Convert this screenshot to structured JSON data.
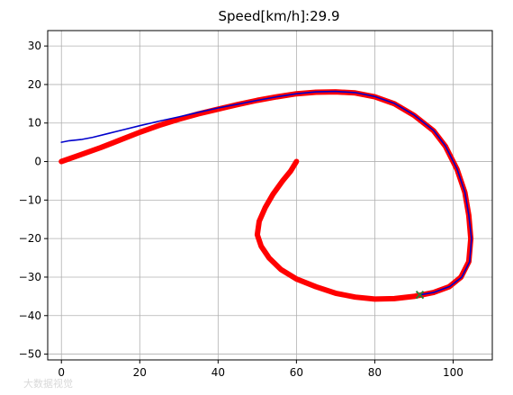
{
  "chart_data": {
    "type": "line",
    "title": "Speed[km/h]:29.9",
    "xlabel": "",
    "ylabel": "",
    "xlim": [
      -3.5,
      110
    ],
    "ylim": [
      -51.5,
      34
    ],
    "grid": true,
    "x_ticks": [
      0,
      20,
      40,
      60,
      80,
      100
    ],
    "y_ticks": [
      -50,
      -40,
      -30,
      -20,
      -10,
      0,
      10,
      20,
      30
    ],
    "series": [
      {
        "name": "",
        "color": "#ff0000",
        "style": "thick-markers",
        "points": [
          [
            0,
            0
          ],
          [
            5,
            1.8
          ],
          [
            10,
            3.6
          ],
          [
            15,
            5.6
          ],
          [
            20,
            7.6
          ],
          [
            25,
            9.4
          ],
          [
            30,
            11
          ],
          [
            35,
            12.4
          ],
          [
            40,
            13.6
          ],
          [
            45,
            14.8
          ],
          [
            50,
            15.9
          ],
          [
            55,
            16.8
          ],
          [
            60,
            17.6
          ],
          [
            65,
            18
          ],
          [
            70,
            18.1
          ],
          [
            75,
            17.8
          ],
          [
            80,
            16.8
          ],
          [
            85,
            15
          ],
          [
            90,
            12
          ],
          [
            95,
            8
          ],
          [
            98,
            4
          ],
          [
            101,
            -2
          ],
          [
            103,
            -8
          ],
          [
            104,
            -14
          ],
          [
            104.5,
            -20
          ],
          [
            104,
            -26
          ],
          [
            102,
            -30
          ],
          [
            99,
            -32.5
          ],
          [
            95,
            -34
          ],
          [
            90,
            -35
          ],
          [
            85,
            -35.6
          ],
          [
            80,
            -35.7
          ],
          [
            75,
            -35.2
          ],
          [
            70,
            -34.2
          ],
          [
            65,
            -32.5
          ],
          [
            60,
            -30.5
          ],
          [
            56,
            -28
          ],
          [
            53,
            -25
          ],
          [
            51,
            -22
          ],
          [
            50,
            -19
          ],
          [
            50.5,
            -15.5
          ],
          [
            52,
            -12
          ],
          [
            54,
            -8.5
          ],
          [
            56.5,
            -5
          ],
          [
            58.5,
            -2.5
          ],
          [
            60,
            0
          ]
        ]
      },
      {
        "name": "",
        "color": "#0000cc",
        "style": "thin-line",
        "points": [
          [
            0,
            5
          ],
          [
            2,
            5.4
          ],
          [
            5,
            5.7
          ],
          [
            8,
            6.3
          ],
          [
            12,
            7.3
          ],
          [
            16,
            8.3
          ],
          [
            20,
            9.3
          ],
          [
            25,
            10.5
          ],
          [
            30,
            11.6
          ],
          [
            35,
            12.8
          ],
          [
            40,
            13.9
          ],
          [
            45,
            14.9
          ],
          [
            50,
            15.9
          ],
          [
            55,
            16.8
          ],
          [
            60,
            17.6
          ],
          [
            65,
            18.1
          ],
          [
            70,
            18.2
          ],
          [
            75,
            17.9
          ],
          [
            80,
            16.9
          ],
          [
            85,
            15.1
          ],
          [
            90,
            12.1
          ],
          [
            95,
            8.1
          ],
          [
            98,
            4.1
          ],
          [
            101,
            -1.9
          ],
          [
            103,
            -7.9
          ],
          [
            104,
            -13.9
          ],
          [
            104.7,
            -20
          ],
          [
            104.2,
            -26
          ],
          [
            102.2,
            -30
          ],
          [
            99.2,
            -32.4
          ],
          [
            95,
            -34
          ],
          [
            91.5,
            -34.6
          ]
        ]
      }
    ],
    "markers": [
      {
        "name": "current-position",
        "shape": "x",
        "color": "#2e7d32",
        "x": 91.5,
        "y": -34.6
      }
    ]
  },
  "watermark_text": "大数据视觉"
}
